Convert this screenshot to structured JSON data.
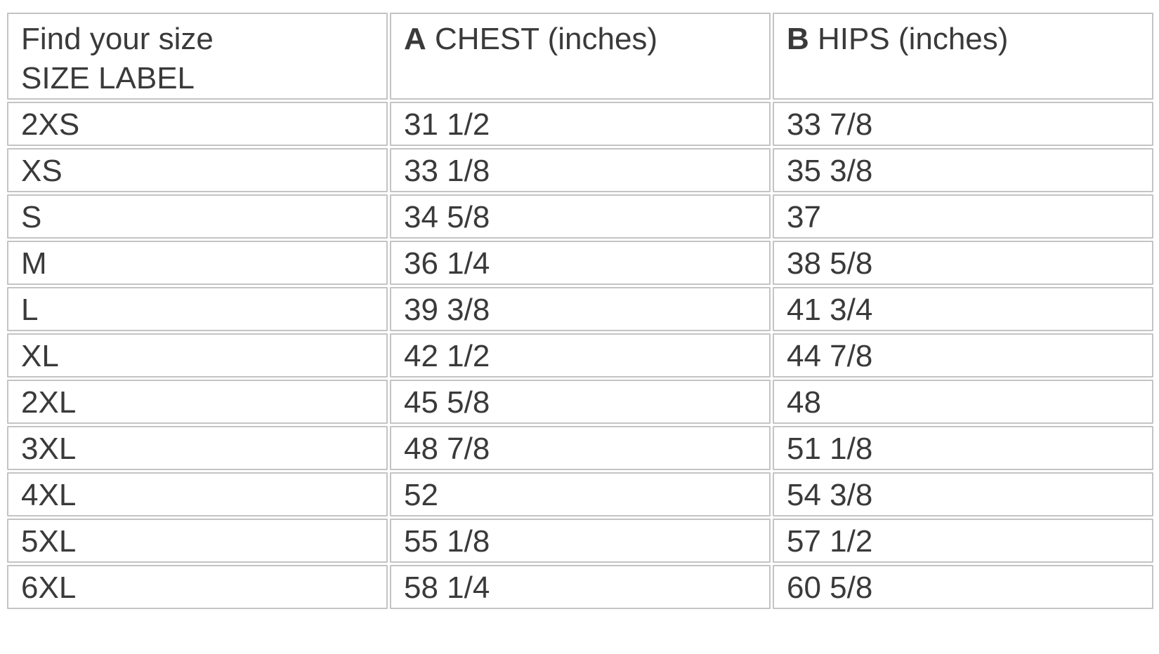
{
  "table": {
    "header": {
      "size_col_line1": "Find your size",
      "size_col_line2": "SIZE LABEL",
      "chest_letter": "A",
      "chest_label": "CHEST (inches)",
      "hips_letter": "B",
      "hips_label": "HIPS (inches)"
    },
    "rows": [
      {
        "size": "2XS",
        "chest": "31 1/2",
        "hips": "33 7/8"
      },
      {
        "size": "XS",
        "chest": "33 1/8",
        "hips": "35 3/8"
      },
      {
        "size": "S",
        "chest": "34 5/8",
        "hips": "37"
      },
      {
        "size": "M",
        "chest": "36 1/4",
        "hips": "38 5/8"
      },
      {
        "size": "L",
        "chest": "39 3/8",
        "hips": "41 3/4"
      },
      {
        "size": "XL",
        "chest": "42 1/2",
        "hips": "44 7/8"
      },
      {
        "size": "2XL",
        "chest": "45 5/8",
        "hips": "48"
      },
      {
        "size": "3XL",
        "chest": "48 7/8",
        "hips": "51 1/8"
      },
      {
        "size": "4XL",
        "chest": "52",
        "hips": "54 3/8"
      },
      {
        "size": "5XL",
        "chest": "55 1/8",
        "hips": "57 1/2"
      },
      {
        "size": "6XL",
        "chest": "58 1/4",
        "hips": "60 5/8"
      }
    ]
  }
}
